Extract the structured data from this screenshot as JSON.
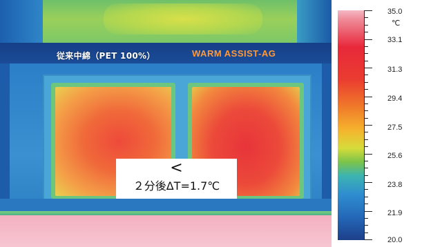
{
  "labels": {
    "left_material": "従来中綿（PET 100%）",
    "right_material": "WARM ASSIST-AG"
  },
  "comparison": {
    "symbol": "<",
    "text": "２分後ΔT=1.7℃"
  },
  "scale": {
    "unit": "℃",
    "values": [
      "35.0",
      "33.1",
      "31.3",
      "29.4",
      "27.5",
      "25.6",
      "23.8",
      "21.9",
      "20.0"
    ]
  }
}
